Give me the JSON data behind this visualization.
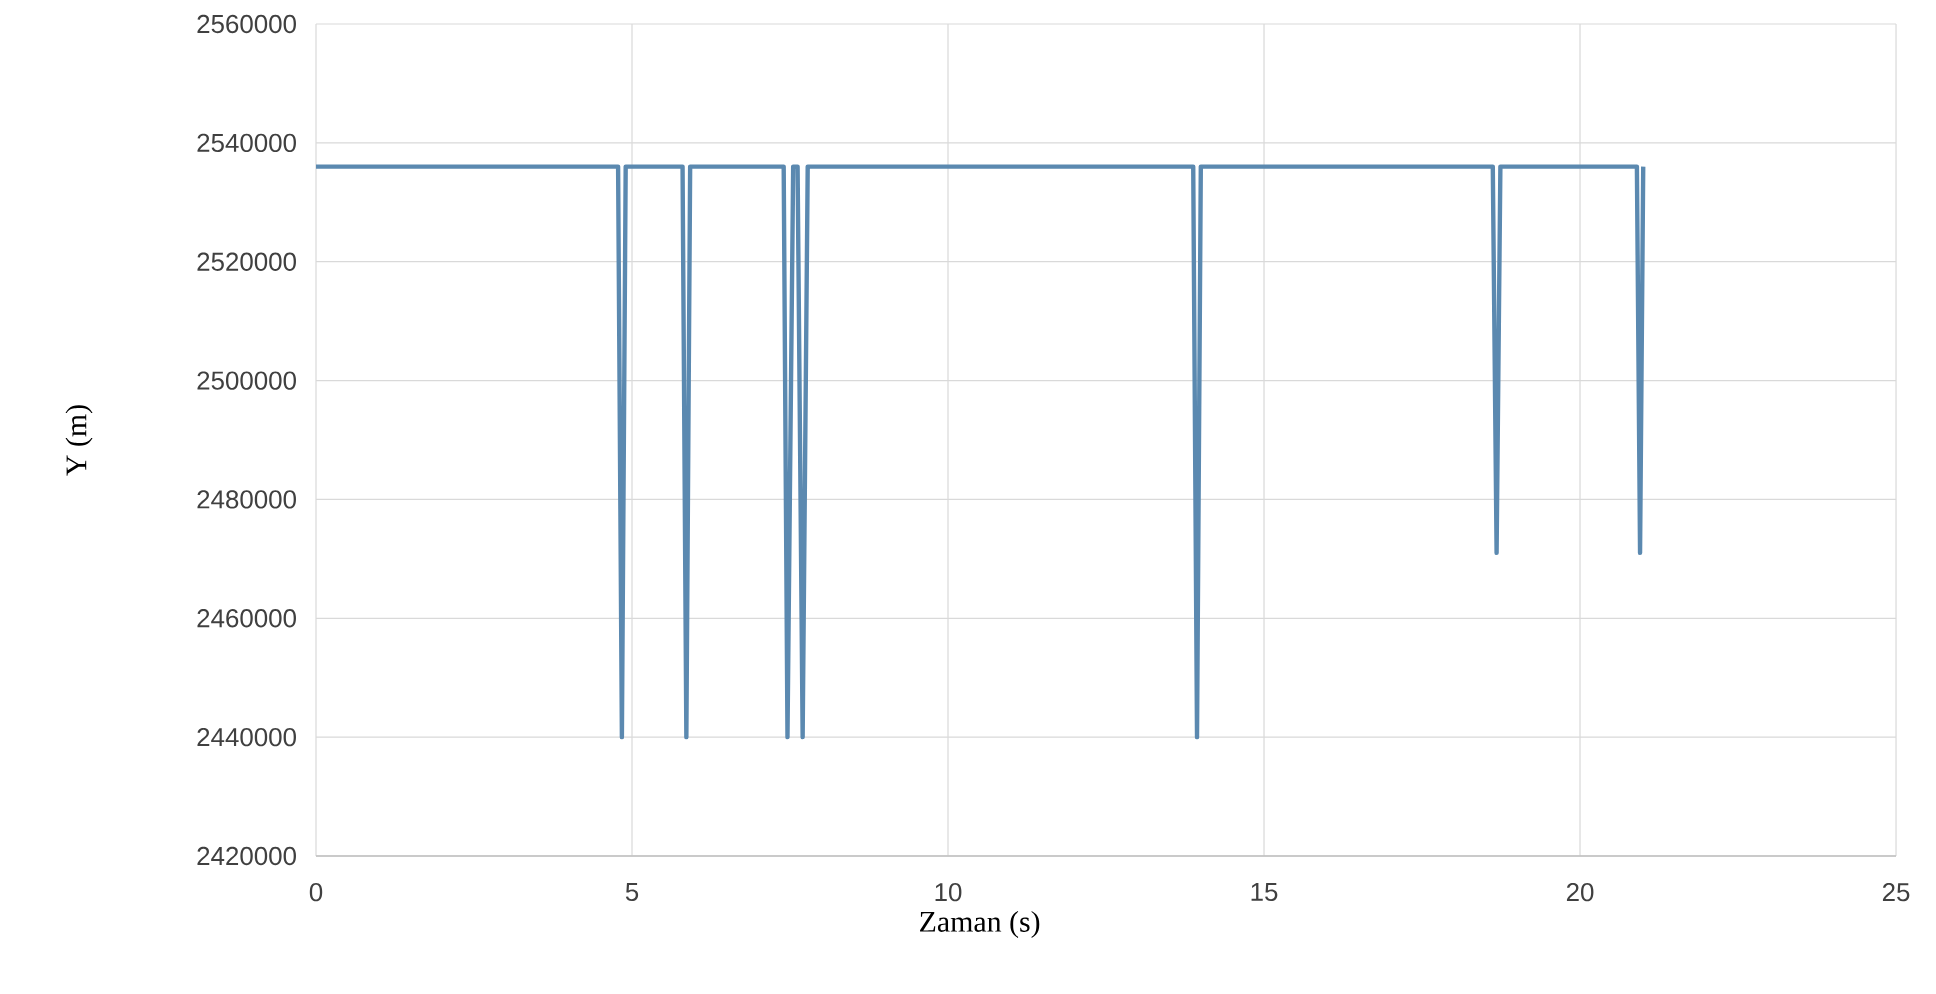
{
  "chart_data": {
    "type": "line",
    "xlabel": "Zaman (s)",
    "ylabel": "Y (m)",
    "x": [
      0,
      4.78,
      4.84,
      4.9,
      5.8,
      5.86,
      5.92,
      7.4,
      7.46,
      7.55,
      7.62,
      7.7,
      7.78,
      13.88,
      13.94,
      14.0,
      18.62,
      18.68,
      18.74,
      20.9,
      20.95,
      21.0
    ],
    "series": [
      {
        "color": "#5b89b0",
        "values": [
          2536000,
          2536000,
          2440000,
          2536000,
          2536000,
          2440000,
          2536000,
          2536000,
          2440000,
          2536000,
          2536000,
          2440000,
          2536000,
          2536000,
          2440000,
          2536000,
          2536000,
          2471000,
          2536000,
          2536000,
          2471000,
          2536000
        ]
      }
    ],
    "xlim": [
      0,
      25
    ],
    "ylim": [
      2420000,
      2560000
    ],
    "xticks": [
      0,
      5,
      10,
      15,
      20,
      25
    ],
    "yticks": [
      2420000,
      2440000,
      2460000,
      2480000,
      2500000,
      2520000,
      2540000,
      2560000
    ],
    "grid": true,
    "marker": "none",
    "line_style": "solid"
  }
}
